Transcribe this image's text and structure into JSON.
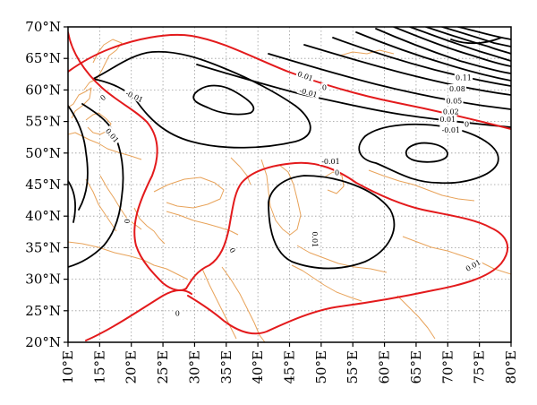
{
  "map": {
    "lon_min": 10,
    "lon_max": 80,
    "lat_min": 20,
    "lat_max": 70,
    "grid": true,
    "colors": {
      "coast": "#e8a35a",
      "zero_contour": "#e31a1c",
      "contour": "#000000",
      "grid": "#9a9a9a"
    },
    "lat_ticks": [
      {
        "value": 70,
        "label": "70°N"
      },
      {
        "value": 65,
        "label": "65°N"
      },
      {
        "value": 60,
        "label": "60°N"
      },
      {
        "value": 55,
        "label": "55°N"
      },
      {
        "value": 50,
        "label": "50°N"
      },
      {
        "value": 45,
        "label": "45°N"
      },
      {
        "value": 40,
        "label": "40°N"
      },
      {
        "value": 35,
        "label": "35°N"
      },
      {
        "value": 30,
        "label": "30°N"
      },
      {
        "value": 25,
        "label": "25°N"
      },
      {
        "value": 20,
        "label": "20°N"
      }
    ],
    "lon_ticks": [
      {
        "value": 10,
        "label": "10°E"
      },
      {
        "value": 15,
        "label": "15°E"
      },
      {
        "value": 20,
        "label": "20°E"
      },
      {
        "value": 25,
        "label": "25°E"
      },
      {
        "value": 30,
        "label": "30°E"
      },
      {
        "value": 35,
        "label": "35°E"
      },
      {
        "value": 40,
        "label": "40°E"
      },
      {
        "value": 45,
        "label": "45°E"
      },
      {
        "value": 50,
        "label": "50°E"
      },
      {
        "value": 55,
        "label": "55°E"
      },
      {
        "value": 60,
        "label": "60°E"
      },
      {
        "value": 65,
        "label": "65°E"
      },
      {
        "value": 70,
        "label": "70°E"
      },
      {
        "value": 75,
        "label": "75°E"
      },
      {
        "value": 80,
        "label": "80°E"
      }
    ],
    "contour_labels": [
      {
        "text": "0.01",
        "lon": 47.5,
        "lat": 62.2,
        "rot": 20
      },
      {
        "text": "0",
        "lon": 50.5,
        "lat": 60.4,
        "rot": 0
      },
      {
        "text": "-0.01",
        "lon": 48.0,
        "lat": 59.6,
        "rot": 15
      },
      {
        "text": "-0.01",
        "lon": 20.5,
        "lat": 59.0,
        "rot": 25
      },
      {
        "text": "0",
        "lon": 15.5,
        "lat": 58.8,
        "rot": -40
      },
      {
        "text": "0.01",
        "lon": 17.0,
        "lat": 52.8,
        "rot": 50
      },
      {
        "text": "-0.01",
        "lon": 51.5,
        "lat": 48.7,
        "rot": 0
      },
      {
        "text": "0",
        "lon": 52.5,
        "lat": 46.9,
        "rot": 0
      },
      {
        "text": "0.11",
        "lon": 72.5,
        "lat": 62.0,
        "rot": 0
      },
      {
        "text": "0.08",
        "lon": 71.5,
        "lat": 60.2,
        "rot": 0
      },
      {
        "text": "0.05",
        "lon": 71.0,
        "lat": 58.3,
        "rot": 0
      },
      {
        "text": "0.02",
        "lon": 70.5,
        "lat": 56.6,
        "rot": 0
      },
      {
        "text": "0.01",
        "lon": 70.0,
        "lat": 55.4,
        "rot": 0
      },
      {
        "text": "0",
        "lon": 73.0,
        "lat": 54.6,
        "rot": 0
      },
      {
        "text": "-0.01",
        "lon": 70.5,
        "lat": 53.7,
        "rot": 0
      },
      {
        "text": "0",
        "lon": 19.3,
        "lat": 39.2,
        "rot": 90
      },
      {
        "text": "0.01",
        "lon": 49.0,
        "lat": 36.3,
        "rot": 90
      },
      {
        "text": "0",
        "lon": 36.0,
        "lat": 34.6,
        "rot": 60
      },
      {
        "text": "0",
        "lon": 27.3,
        "lat": 24.6,
        "rot": 0
      },
      {
        "text": "0.01",
        "lon": 74.0,
        "lat": 32.2,
        "rot": -30
      }
    ]
  }
}
